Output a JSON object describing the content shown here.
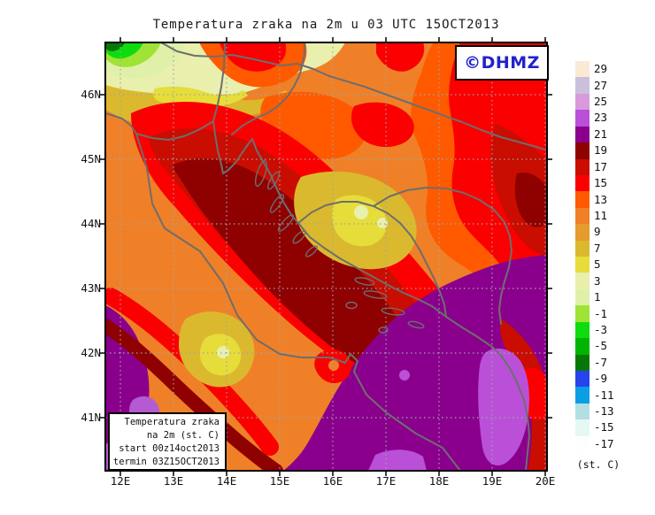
{
  "title": "Temperatura zraka na 2m u 03 UTC 15OCT2013",
  "branding": {
    "label": "©DHMZ",
    "color": "#2222CC"
  },
  "info_box": {
    "lines": [
      "Temperatura zraka",
      "na 2m (st. C)",
      "start 00z14oct2013",
      "termin 03Z15OCT2013"
    ]
  },
  "axes": {
    "lon_ticks": [
      {
        "label": "12E",
        "lon": 12
      },
      {
        "label": "13E",
        "lon": 13
      },
      {
        "label": "14E",
        "lon": 14
      },
      {
        "label": "15E",
        "lon": 15
      },
      {
        "label": "16E",
        "lon": 16
      },
      {
        "label": "17E",
        "lon": 17
      },
      {
        "label": "18E",
        "lon": 18
      },
      {
        "label": "19E",
        "lon": 19
      },
      {
        "label": "20E",
        "lon": 20
      }
    ],
    "lat_ticks": [
      {
        "label": "41N",
        "lat": 41
      },
      {
        "label": "42N",
        "lat": 42
      },
      {
        "label": "43N",
        "lat": 43
      },
      {
        "label": "44N",
        "lat": 44
      },
      {
        "label": "45N",
        "lat": 45
      },
      {
        "label": "46N",
        "lat": 46
      }
    ]
  },
  "colorbar": {
    "unit_label": "(st. C)",
    "levels": [
      {
        "value": "29",
        "color": "#FAEAD3"
      },
      {
        "value": "27",
        "color": "#CBC0DB"
      },
      {
        "value": "25",
        "color": "#D89ADC"
      },
      {
        "value": "23",
        "color": "#BA50D8"
      },
      {
        "value": "21",
        "color": "#8A008C"
      },
      {
        "value": "19",
        "color": "#8F0000"
      },
      {
        "value": "17",
        "color": "#C90D00"
      },
      {
        "value": "15",
        "color": "#FB0000"
      },
      {
        "value": "13",
        "color": "#FF5A00"
      },
      {
        "value": "11",
        "color": "#F08027"
      },
      {
        "value": "9",
        "color": "#E69B2E"
      },
      {
        "value": "7",
        "color": "#DBB92E"
      },
      {
        "value": "5",
        "color": "#E6DC3A"
      },
      {
        "value": "3",
        "color": "#E9EFAD"
      },
      {
        "value": "1",
        "color": "#DFF0A8"
      },
      {
        "value": "-1",
        "color": "#9FE336"
      },
      {
        "value": "-3",
        "color": "#0FDC0F"
      },
      {
        "value": "-5",
        "color": "#00B400"
      },
      {
        "value": "-7",
        "color": "#077807"
      },
      {
        "value": "-9",
        "color": "#2644EE"
      },
      {
        "value": "-11",
        "color": "#0A9EE2"
      },
      {
        "value": "-13",
        "color": "#B3DEE2"
      },
      {
        "value": "-15",
        "color": "#E6F8F3"
      },
      {
        "value": "-17",
        "color": "#FEFEFE"
      }
    ]
  },
  "chart_data": {
    "type": "heatmap",
    "title": "Temperatura zraka na 2m u 03 UTC 15OCT2013",
    "variable": "air temperature at 2 m",
    "unit": "st. C (degrees Celsius)",
    "valid_time": "03 UTC 15OCT2013",
    "init_time": "00z14oct2013",
    "extent": {
      "lon_min": 12,
      "lon_max": 20,
      "lat_min": 41,
      "lat_max": 46,
      "lon_label_step": 1,
      "lat_label_step": 1
    },
    "scale_levels_c": [
      29,
      27,
      25,
      23,
      21,
      19,
      17,
      15,
      13,
      11,
      9,
      7,
      5,
      3,
      1,
      -1,
      -3,
      -5,
      -7,
      -9,
      -11,
      -13,
      -15,
      -17
    ],
    "grid": "dotted graticule every 1 degree",
    "legend_position": "right",
    "qualitative_field": [
      {
        "region": "NW corner / Alps (12E 46.5N)",
        "approx_temp_c": "-5 to 3 (greens)"
      },
      {
        "region": "Slovenia / N Croatia band along top",
        "approx_temp_c": "3 to 7 (pale yellow, golden)"
      },
      {
        "region": "Inland Croatia, Bosnia, Serbia lowlands",
        "approx_temp_c": "9 to 15 (orange to red)"
      },
      {
        "region": "Central Bosnia valleys",
        "approx_temp_c": "5 to 9 (yellow-golden patches)"
      },
      {
        "region": "North and central Adriatic sea",
        "approx_temp_c": "17 to 19 (dark red / maroon)"
      },
      {
        "region": "South Adriatic and Tyrrhenian sea",
        "approx_temp_c": "21 (purple)"
      },
      {
        "region": "Sea off Albania / SE Adriatic",
        "approx_temp_c": "23 (light purple)"
      },
      {
        "region": "Far east edge (20E 45N)",
        "approx_temp_c": "17 to 19 (dark red)"
      }
    ]
  }
}
